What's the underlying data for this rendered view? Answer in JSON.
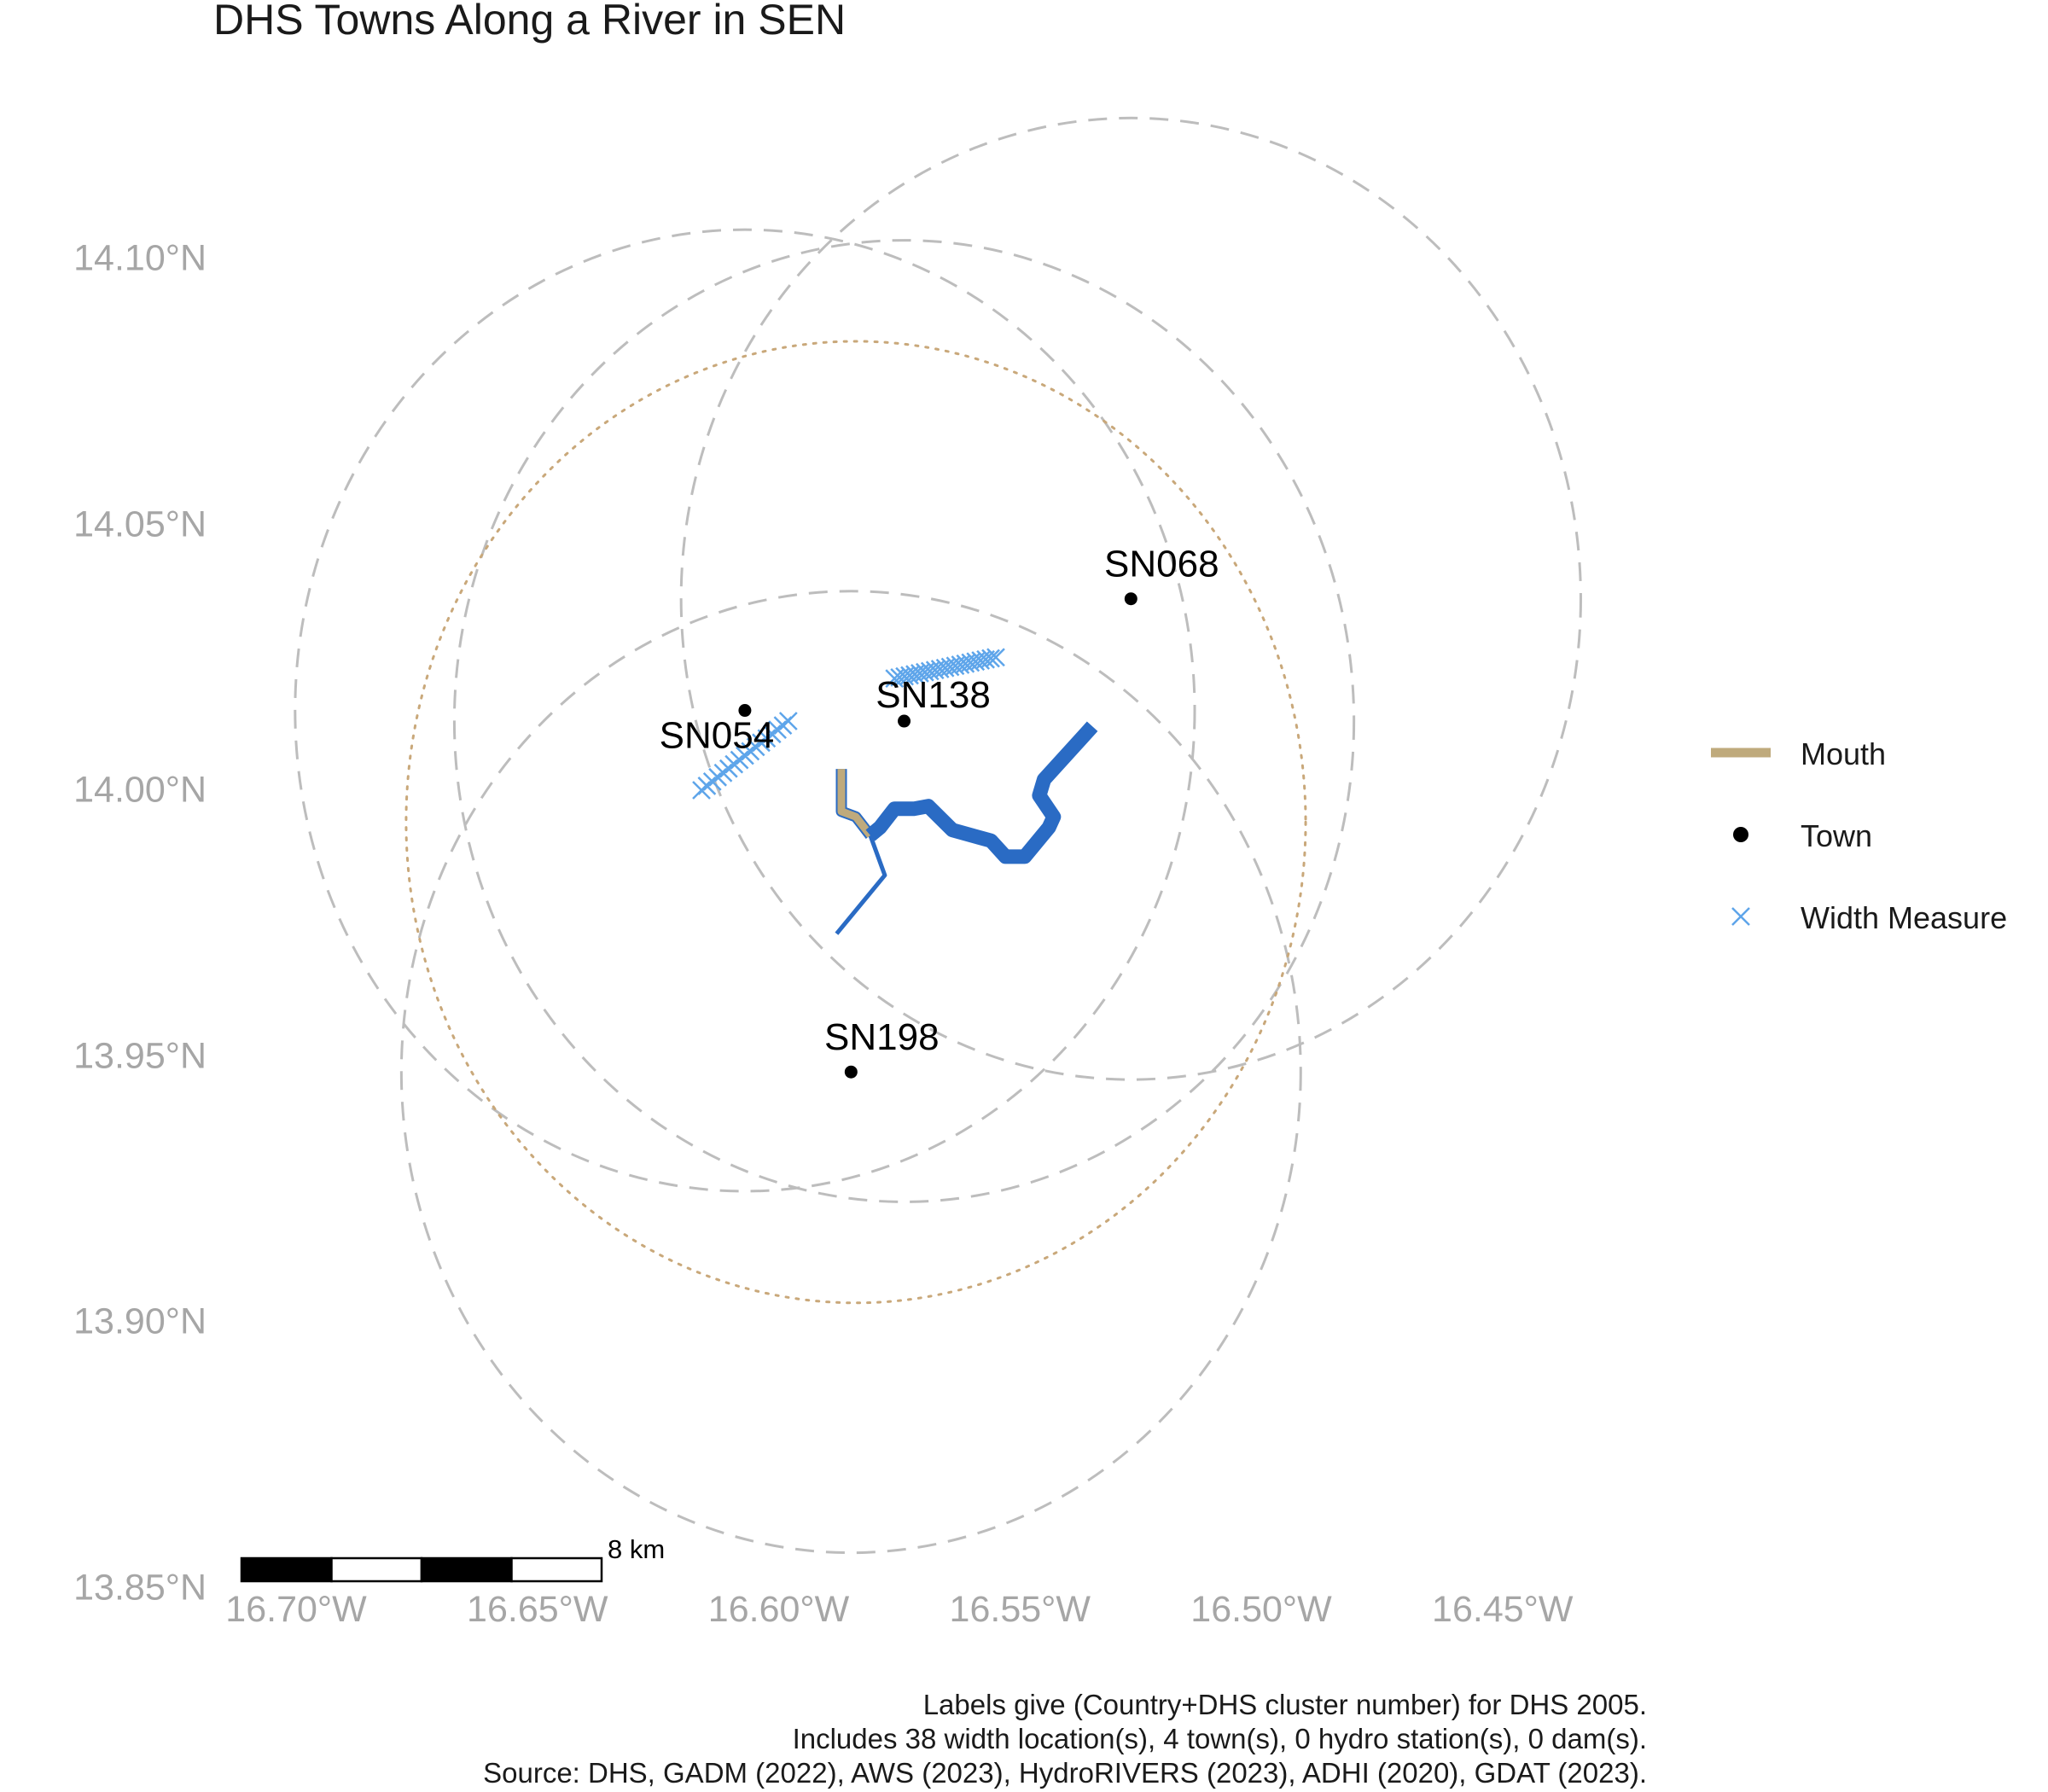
{
  "title": "DHS Towns Along a River in SEN",
  "y_axis": {
    "ticks": [
      {
        "value": 14.1,
        "label": "14.10°N"
      },
      {
        "value": 14.05,
        "label": "14.05°N"
      },
      {
        "value": 14.0,
        "label": "14.00°N"
      },
      {
        "value": 13.95,
        "label": "13.95°N"
      },
      {
        "value": 13.9,
        "label": "13.90°N"
      },
      {
        "value": 13.85,
        "label": "13.85°N"
      }
    ]
  },
  "x_axis": {
    "ticks": [
      {
        "value": -16.7,
        "label": "16.70°W"
      },
      {
        "value": -16.65,
        "label": "16.65°W"
      },
      {
        "value": -16.6,
        "label": "16.60°W"
      },
      {
        "value": -16.55,
        "label": "16.55°W"
      },
      {
        "value": -16.5,
        "label": "16.50°W"
      },
      {
        "value": -16.45,
        "label": "16.45°W"
      }
    ]
  },
  "legend": [
    {
      "key": "mouth",
      "label": "Mouth"
    },
    {
      "key": "town",
      "label": "Town"
    },
    {
      "key": "width",
      "label": "Width Measure"
    }
  ],
  "colors": {
    "river": "#2a6bc4",
    "mouth": "#bfaa7c",
    "town": "#000000",
    "width_measure": "#5ea5ea",
    "buffer_circle": "#bdbdbd",
    "mouth_circle": "#c9a87a"
  },
  "towns": [
    {
      "id": "SN068",
      "lon": -16.527,
      "lat": 14.036
    },
    {
      "id": "SN138",
      "lon": -16.574,
      "lat": 14.013
    },
    {
      "id": "SN054",
      "lon": -16.607,
      "lat": 14.015
    },
    {
      "id": "SN198",
      "lon": -16.585,
      "lat": 13.947
    }
  ],
  "town_buffers": [
    {
      "lon": -16.527,
      "lat": 14.036,
      "radius_km": 10
    },
    {
      "lon": -16.574,
      "lat": 14.013,
      "radius_km": 10
    },
    {
      "lon": -16.607,
      "lat": 14.015,
      "radius_km": 10
    },
    {
      "lon": -16.585,
      "lat": 13.947,
      "radius_km": 10
    }
  ],
  "mouth_buffer": {
    "lon": -16.584,
    "lat": 13.994,
    "radius_km": 10,
    "style": "dotted"
  },
  "river_main": [
    [
      -16.535,
      14.012
    ],
    [
      -16.545,
      14.002
    ],
    [
      -16.546,
      13.999
    ],
    [
      -16.543,
      13.995
    ],
    [
      -16.544,
      13.993
    ],
    [
      -16.549,
      13.9875
    ],
    [
      -16.553,
      13.9875
    ],
    [
      -16.556,
      13.9905
    ],
    [
      -16.564,
      13.9925
    ],
    [
      -16.569,
      13.997
    ],
    [
      -16.572,
      13.9965
    ],
    [
      -16.576,
      13.9965
    ],
    [
      -16.579,
      13.993
    ],
    [
      -16.581,
      13.9915
    ]
  ],
  "river_trib": [
    [
      -16.581,
      13.9915
    ],
    [
      -16.578,
      13.984
    ],
    [
      -16.588,
      13.973
    ]
  ],
  "mouth_segment": [
    [
      -16.581,
      13.9915
    ],
    [
      -16.584,
      13.995
    ],
    [
      -16.587,
      13.996
    ],
    [
      -16.587,
      14.004
    ]
  ],
  "width_measures_sn054": {
    "count": 17,
    "from": [
      -16.616,
      14.0
    ],
    "to": [
      -16.598,
      14.013
    ]
  },
  "width_measures_sn138": {
    "count": 21,
    "from": [
      -16.576,
      14.021
    ],
    "to": [
      -16.555,
      14.025
    ]
  },
  "scale_bar": {
    "label": "8 km",
    "segments": [
      "black",
      "white",
      "black",
      "white"
    ]
  },
  "caption": [
    "Labels give (Country+DHS cluster number) for DHS 2005.",
    "Includes 38 width location(s), 4 town(s), 0 hydro station(s), 0 dam(s).",
    "Source: DHS, GADM (2022), AWS (2023), HydroRIVERS (2023), ADHI (2020), GDAT (2023)."
  ]
}
